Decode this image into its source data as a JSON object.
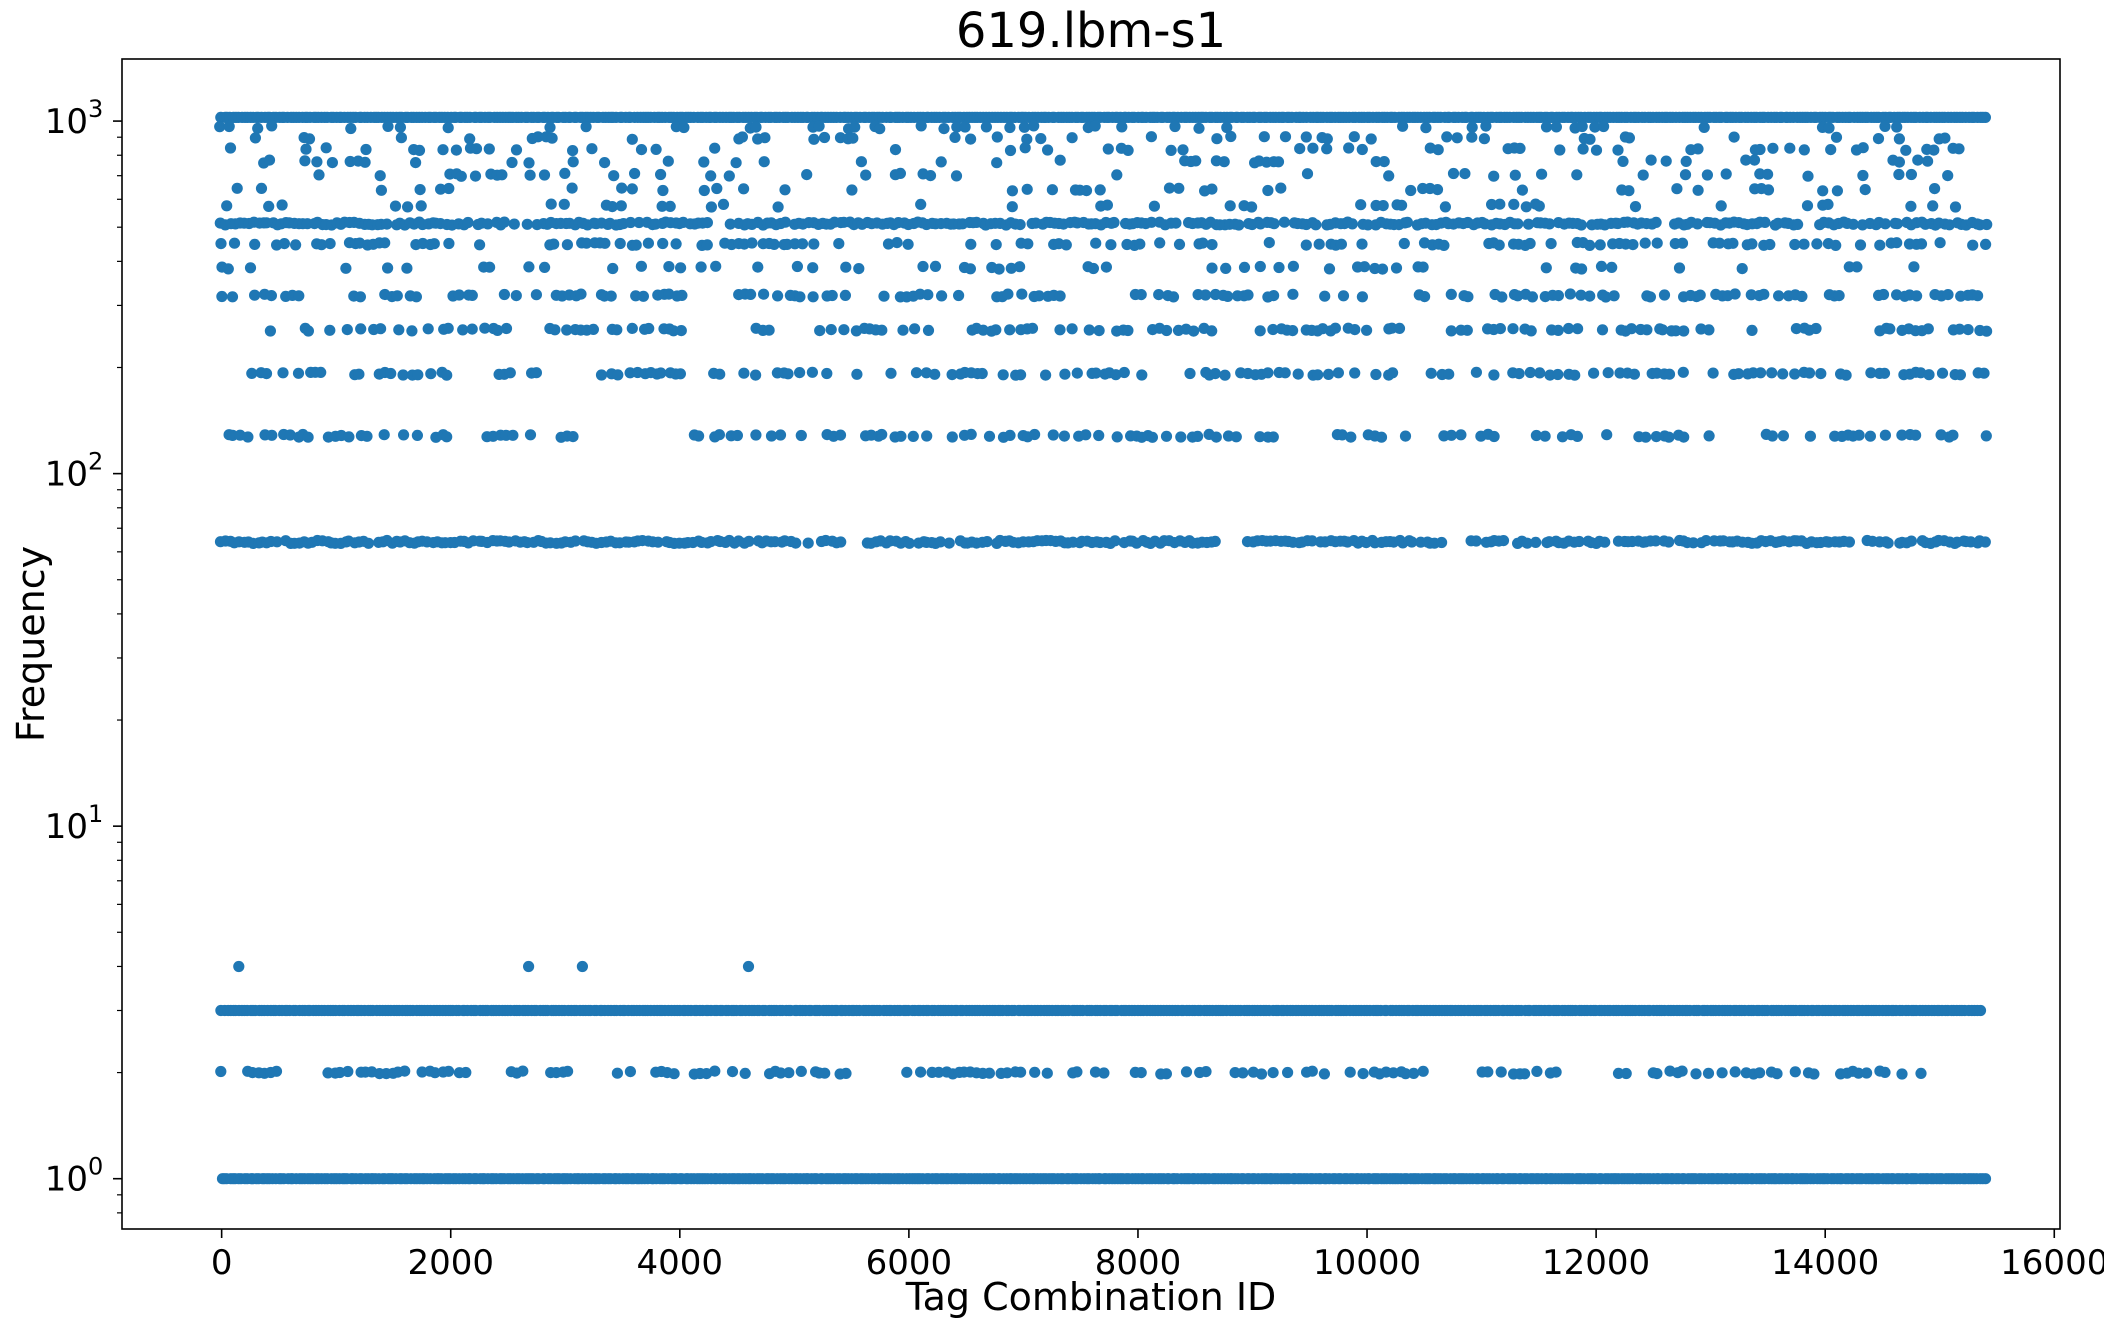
{
  "chart_data": {
    "type": "scatter",
    "title": "619.lbm-s1",
    "xlabel": "Tag Combination ID",
    "ylabel": "Frequency",
    "xlim": [
      -870,
      16050
    ],
    "ylim": [
      0.72,
      1500
    ],
    "yscale": "log",
    "grid": false,
    "legend": "none",
    "marker_color": "#1f77b4",
    "x_ticks": [
      {
        "value": 0,
        "label": "0"
      },
      {
        "value": 2000,
        "label": "2000"
      },
      {
        "value": 4000,
        "label": "4000"
      },
      {
        "value": 6000,
        "label": "6000"
      },
      {
        "value": 8000,
        "label": "8000"
      },
      {
        "value": 10000,
        "label": "10000"
      },
      {
        "value": 12000,
        "label": "12000"
      },
      {
        "value": 14000,
        "label": "14000"
      },
      {
        "value": 16000,
        "label": "16000"
      }
    ],
    "y_ticks": [
      {
        "value": 1,
        "base": "10",
        "exp": "0"
      },
      {
        "value": 10,
        "base": "10",
        "exp": "1"
      },
      {
        "value": 100,
        "base": "10",
        "exp": "2"
      },
      {
        "value": 1000,
        "base": "10",
        "exp": "3"
      }
    ],
    "bands": [
      {
        "y": 1024,
        "x_range": [
          0,
          15400
        ],
        "density": "continuous"
      },
      {
        "y": 960,
        "x_range": [
          0,
          15400
        ],
        "density": "sparse"
      },
      {
        "y": 896,
        "x_range": [
          0,
          15400
        ],
        "density": "sparse"
      },
      {
        "y": 832,
        "x_range": [
          0,
          15400
        ],
        "density": "sparse"
      },
      {
        "y": 768,
        "x_range": [
          0,
          15400
        ],
        "density": "sparse"
      },
      {
        "y": 704,
        "x_range": [
          0,
          15400
        ],
        "density": "sparse"
      },
      {
        "y": 640,
        "x_range": [
          0,
          15400
        ],
        "density": "sparse"
      },
      {
        "y": 576,
        "x_range": [
          0,
          15400
        ],
        "density": "sparse"
      },
      {
        "y": 512,
        "x_range": [
          0,
          15400
        ],
        "density": "dense"
      },
      {
        "y": 448,
        "x_range": [
          0,
          15400
        ],
        "density": "medium"
      },
      {
        "y": 384,
        "x_range": [
          0,
          15400
        ],
        "density": "sparse"
      },
      {
        "y": 320,
        "x_range": [
          0,
          15400
        ],
        "density": "medium"
      },
      {
        "y": 256,
        "x_range": [
          0,
          15400
        ],
        "density": "medium"
      },
      {
        "y": 192,
        "x_range": [
          0,
          15400
        ],
        "density": "medium"
      },
      {
        "y": 128,
        "x_range": [
          0,
          15400
        ],
        "density": "medium"
      },
      {
        "y": 64,
        "x_range": [
          0,
          15400
        ],
        "density": "dense"
      },
      {
        "y": 4,
        "x_values": [
          150,
          2680,
          3150,
          4600
        ]
      },
      {
        "y": 3,
        "x_range": [
          0,
          15350
        ],
        "density": "continuous"
      },
      {
        "y": 2,
        "x_range": [
          0,
          14900
        ],
        "density": "medium"
      },
      {
        "y": 1,
        "x_range": [
          0,
          15400
        ],
        "density": "continuous"
      }
    ]
  }
}
